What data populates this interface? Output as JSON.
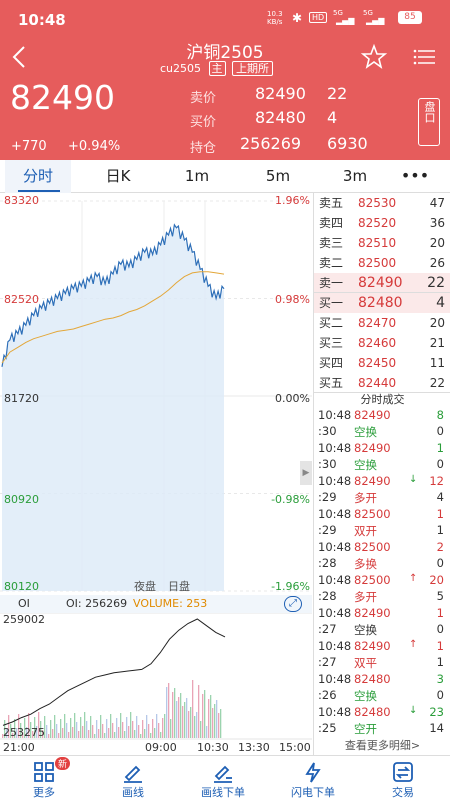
{
  "status": {
    "time": "10:48",
    "net_speed": "10.3\nKB/s",
    "hd": "HD",
    "sig1": "5G",
    "sig2": "5G",
    "battery": "85"
  },
  "header": {
    "title": "沪铜2505",
    "code": "cu2505",
    "main_badge": "主",
    "exchange_badge": "上期所",
    "price": "82490",
    "change": "+770",
    "change_pct": "+0.94%",
    "sell_label": "卖价",
    "sell_price": "82490",
    "sell_vol": "22",
    "buy_label": "买价",
    "buy_price": "82480",
    "buy_vol": "4",
    "hold_label": "持仓",
    "hold_value": "256269",
    "hold_change": "6930",
    "panel_btn": "盘口"
  },
  "tabs": [
    "分时",
    "日K",
    "1m",
    "5m",
    "3m"
  ],
  "chart": {
    "y_labels": [
      "83320",
      "82520",
      "81720",
      "80920",
      "80120"
    ],
    "pct_labels": [
      "1.96%",
      "0.98%",
      "0.00%",
      "-0.98%",
      "-1.96%"
    ],
    "session_labels": [
      "夜盘",
      "日盘"
    ],
    "oi_title": "OI",
    "oi_value": "OI: 256269",
    "volume": "VOLUME: 253",
    "oi_max": "259002",
    "oi_min": "253275",
    "x_labels": [
      "21:00",
      "09:00",
      "10:30",
      "13:30",
      "15:00"
    ]
  },
  "chart_data": {
    "type": "line",
    "ylim": [
      80120,
      83320
    ],
    "price": [
      81960,
      82180,
      82230,
      82300,
      82380,
      82440,
      82480,
      82520,
      82560,
      82600,
      82620,
      82660,
      82700,
      82640,
      82720,
      82800,
      82780,
      82840,
      82900,
      82880,
      82960,
      83040,
      83100,
      83000,
      82900,
      82760,
      82620,
      82520,
      82600
    ],
    "avg": [
      81990,
      82080,
      82120,
      82160,
      82190,
      82210,
      82230,
      82250,
      82260,
      82270,
      82290,
      82310,
      82330,
      82350,
      82360,
      82380,
      82410,
      82430,
      82460,
      82500,
      82540,
      82590,
      82650,
      82700,
      82730,
      82740,
      82740,
      82730,
      82720
    ]
  },
  "orderbook": {
    "asks": [
      {
        "label": "卖五",
        "price": "82530",
        "vol": "47"
      },
      {
        "label": "卖四",
        "price": "82520",
        "vol": "36"
      },
      {
        "label": "卖三",
        "price": "82510",
        "vol": "20"
      },
      {
        "label": "卖二",
        "price": "82500",
        "vol": "26"
      },
      {
        "label": "卖一",
        "price": "82490",
        "vol": "22"
      }
    ],
    "bids": [
      {
        "label": "买一",
        "price": "82480",
        "vol": "4"
      },
      {
        "label": "买二",
        "price": "82470",
        "vol": "20"
      },
      {
        "label": "买三",
        "price": "82460",
        "vol": "21"
      },
      {
        "label": "买四",
        "price": "82450",
        "vol": "11"
      },
      {
        "label": "买五",
        "price": "82440",
        "vol": "22"
      }
    ],
    "trades_title": "分时成交",
    "trades": [
      {
        "t1": "10:48",
        "t2": ":30",
        "price": "82490",
        "arrow": "",
        "vol": "8",
        "vol_color": "#2a9d3a",
        "side": "空换",
        "side_color": "#2a9d3a",
        "chg": "0"
      },
      {
        "t1": "10:48",
        "t2": ":30",
        "price": "82490",
        "arrow": "",
        "vol": "1",
        "vol_color": "#2a9d3a",
        "side": "空换",
        "side_color": "#2a9d3a",
        "chg": "0"
      },
      {
        "t1": "10:48",
        "t2": ":29",
        "price": "82490",
        "arrow": "↓",
        "vol": "12",
        "vol_color": "#d53a3a",
        "side": "多开",
        "side_color": "#d53a3a",
        "chg": "4"
      },
      {
        "t1": "10:48",
        "t2": ":29",
        "price": "82500",
        "arrow": "",
        "vol": "1",
        "vol_color": "#d53a3a",
        "side": "双开",
        "side_color": "#d53a3a",
        "chg": "1"
      },
      {
        "t1": "10:48",
        "t2": ":28",
        "price": "82500",
        "arrow": "",
        "vol": "2",
        "vol_color": "#d53a3a",
        "side": "多换",
        "side_color": "#d53a3a",
        "chg": "0"
      },
      {
        "t1": "10:48",
        "t2": ":28",
        "price": "82500",
        "arrow": "↑",
        "vol": "20",
        "vol_color": "#d53a3a",
        "side": "多开",
        "side_color": "#d53a3a",
        "chg": "5"
      },
      {
        "t1": "10:48",
        "t2": ":27",
        "price": "82490",
        "arrow": "",
        "vol": "1",
        "vol_color": "#d53a3a",
        "side": "空换",
        "side_color": "#333",
        "chg": "0"
      },
      {
        "t1": "10:48",
        "t2": ":27",
        "price": "82490",
        "arrow": "↑",
        "vol": "1",
        "vol_color": "#d53a3a",
        "side": "双平",
        "side_color": "#d53a3a",
        "chg": "1"
      },
      {
        "t1": "10:48",
        "t2": ":26",
        "price": "82480",
        "arrow": "",
        "vol": "3",
        "vol_color": "#2a9d3a",
        "side": "空换",
        "side_color": "#2a9d3a",
        "chg": "0"
      },
      {
        "t1": "10:48",
        "t2": ":25",
        "price": "82480",
        "arrow": "↓",
        "vol": "23",
        "vol_color": "#2a9d3a",
        "side": "空开",
        "side_color": "#2a9d3a",
        "chg": "14"
      }
    ],
    "more_label": "查看更多明细>"
  },
  "bottom_nav": [
    {
      "label": "更多",
      "badge": "新"
    },
    {
      "label": "画线"
    },
    {
      "label": "画线下单"
    },
    {
      "label": "闪电下单"
    },
    {
      "label": "交易"
    }
  ]
}
